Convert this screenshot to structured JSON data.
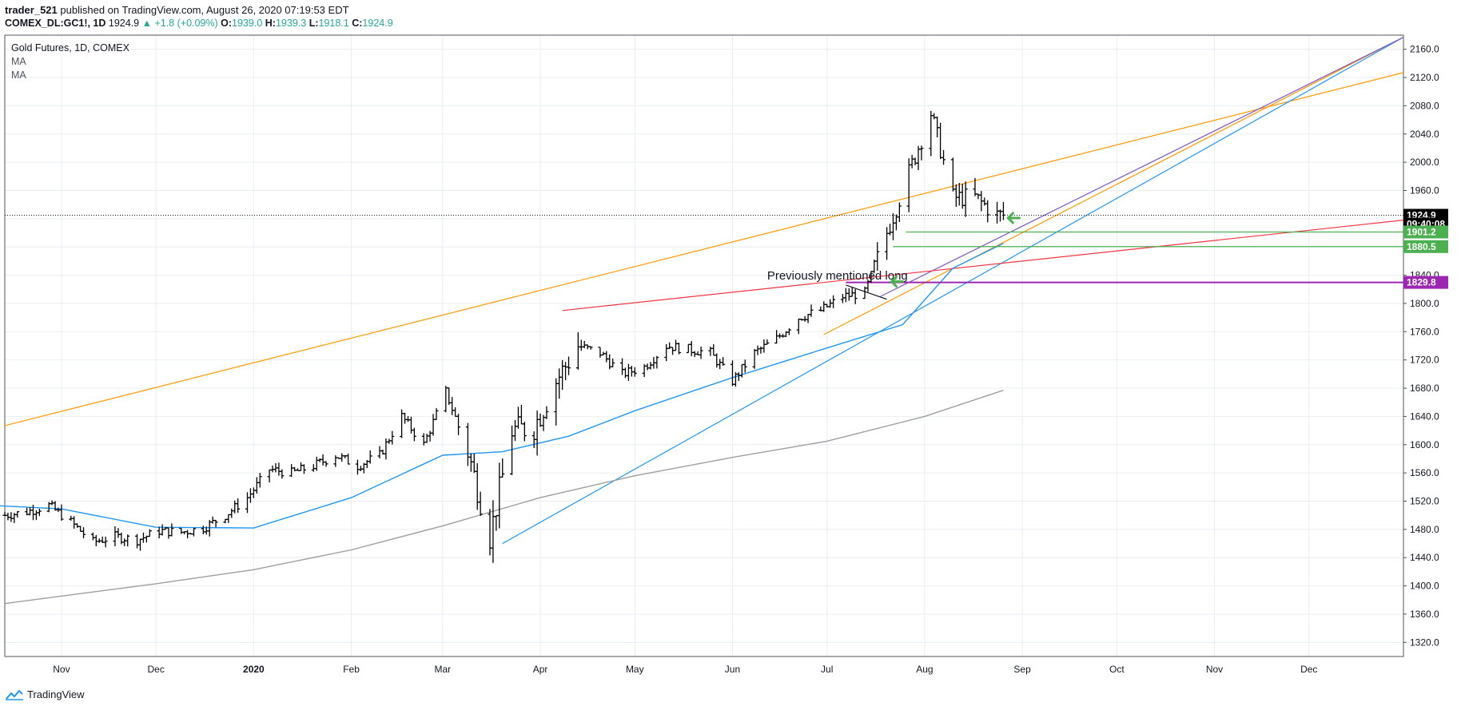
{
  "header": {
    "user": "trader_521",
    "published": "published on TradingView.com, August 26, 2020 07:19:53 EDT",
    "symbol": "COMEX_DL:GC1!, 1D",
    "price": "1924.9",
    "change": "▲ +1.8 (+0.09%)",
    "o_label": "O:",
    "o_val": "1939.0",
    "h_label": "H:",
    "h_val": "1939.3",
    "l_label": "L:",
    "l_val": "1918.1",
    "c_label": "C:",
    "c_val": "1924.9"
  },
  "legend": {
    "title": "Gold Futures, 1D, COMEX",
    "ma1": "MA",
    "ma2": "MA"
  },
  "footer": {
    "brand": "TradingView"
  },
  "colors": {
    "bars": "#000000",
    "ma_fast": "#2196f3",
    "ma_slow": "#9e9e9e",
    "orange": "#ff9800",
    "red": "#f23645",
    "purple": "#7e57c2",
    "green": "#4caf50",
    "magenta": "#9c27b0"
  },
  "chart_data": {
    "type": "ohlc",
    "ylim": [
      1300,
      2180
    ],
    "yticks": [
      "2160.0",
      "2120.0",
      "2080.0",
      "2040.0",
      "2000.0",
      "1960.0",
      "1920.0",
      "1880.0",
      "1840.0",
      "1800.0",
      "1760.0",
      "1720.0",
      "1680.0",
      "1640.0",
      "1600.0",
      "1560.0",
      "1520.0",
      "1480.0",
      "1440.0",
      "1400.0",
      "1360.0",
      "1320.0"
    ],
    "xticks": [
      "Nov",
      "Dec",
      "2020",
      "Feb",
      "Mar",
      "Apr",
      "May",
      "Jun",
      "Jul",
      "Aug",
      "Sep",
      "Oct",
      "Nov",
      "Dec"
    ],
    "date_range": [
      "2019-10-14",
      "2020-12-31"
    ],
    "xtick_dates": [
      "2019-11-01",
      "2019-12-01",
      "2020-01-01",
      "2020-02-01",
      "2020-03-01",
      "2020-04-01",
      "2020-05-01",
      "2020-06-01",
      "2020-07-01",
      "2020-08-01",
      "2020-09-01",
      "2020-10-01",
      "2020-11-01",
      "2020-12-01"
    ],
    "price_close": [
      [
        "2019-10-14",
        1500
      ],
      [
        "2019-10-21",
        1505
      ],
      [
        "2019-10-28",
        1514
      ],
      [
        "2019-11-04",
        1490
      ],
      [
        "2019-11-11",
        1462
      ],
      [
        "2019-11-18",
        1470
      ],
      [
        "2019-11-25",
        1465
      ],
      [
        "2019-12-02",
        1478
      ],
      [
        "2019-12-09",
        1476
      ],
      [
        "2019-12-16",
        1482
      ],
      [
        "2019-12-23",
        1500
      ],
      [
        "2019-12-30",
        1525
      ],
      [
        "2020-01-06",
        1565
      ],
      [
        "2020-01-13",
        1560
      ],
      [
        "2020-01-20",
        1570
      ],
      [
        "2020-01-27",
        1585
      ],
      [
        "2020-02-03",
        1570
      ],
      [
        "2020-02-10",
        1585
      ],
      [
        "2020-02-17",
        1640
      ],
      [
        "2020-02-24",
        1600
      ],
      [
        "2020-03-02",
        1675
      ],
      [
        "2020-03-09",
        1590
      ],
      [
        "2020-03-16",
        1470
      ],
      [
        "2020-03-23",
        1620
      ],
      [
        "2020-03-30",
        1625
      ],
      [
        "2020-04-06",
        1690
      ],
      [
        "2020-04-13",
        1740
      ],
      [
        "2020-04-20",
        1730
      ],
      [
        "2020-04-27",
        1700
      ],
      [
        "2020-05-04",
        1710
      ],
      [
        "2020-05-11",
        1740
      ],
      [
        "2020-05-18",
        1735
      ],
      [
        "2020-05-25",
        1730
      ],
      [
        "2020-06-01",
        1690
      ],
      [
        "2020-06-08",
        1730
      ],
      [
        "2020-06-15",
        1750
      ],
      [
        "2020-06-22",
        1780
      ],
      [
        "2020-06-29",
        1790
      ],
      [
        "2020-07-06",
        1810
      ],
      [
        "2020-07-13",
        1815
      ],
      [
        "2020-07-20",
        1900
      ],
      [
        "2020-07-27",
        1985
      ],
      [
        "2020-08-03",
        2070
      ],
      [
        "2020-08-10",
        1950
      ],
      [
        "2020-08-17",
        1950
      ],
      [
        "2020-08-24",
        1925
      ]
    ],
    "moving_averages": [
      {
        "name": "MA",
        "color": "#2196f3",
        "points": [
          [
            "2019-10-01",
            1516
          ],
          [
            "2019-11-01",
            1509
          ],
          [
            "2019-12-01",
            1483
          ],
          [
            "2020-01-01",
            1482
          ],
          [
            "2020-02-01",
            1525
          ],
          [
            "2020-03-01",
            1585
          ],
          [
            "2020-03-20",
            1590
          ],
          [
            "2020-04-10",
            1612
          ],
          [
            "2020-05-01",
            1648
          ],
          [
            "2020-06-01",
            1695
          ],
          [
            "2020-07-01",
            1737
          ],
          [
            "2020-07-25",
            1770
          ],
          [
            "2020-08-10",
            1850
          ],
          [
            "2020-08-26",
            1885
          ]
        ]
      },
      {
        "name": "MA",
        "color": "#9e9e9e",
        "points": [
          [
            "2019-10-14",
            1375
          ],
          [
            "2019-12-01",
            1403
          ],
          [
            "2020-01-01",
            1423
          ],
          [
            "2020-02-01",
            1451
          ],
          [
            "2020-03-01",
            1485
          ],
          [
            "2020-04-01",
            1525
          ],
          [
            "2020-05-01",
            1556
          ],
          [
            "2020-06-01",
            1582
          ],
          [
            "2020-07-01",
            1605
          ],
          [
            "2020-08-01",
            1640
          ],
          [
            "2020-08-26",
            1677
          ]
        ]
      }
    ],
    "trendlines": [
      {
        "color": "#ff9800",
        "from": [
          "2019-10-14",
          1627
        ],
        "to": [
          "2020-12-31",
          2127
        ]
      },
      {
        "color": "#ff9800",
        "from": [
          "2020-06-30",
          1756
        ],
        "to": [
          "2020-12-31",
          2177
        ]
      },
      {
        "color": "#2196f3",
        "from": [
          "2020-03-20",
          1460
        ],
        "to": [
          "2020-12-31",
          2177
        ]
      },
      {
        "color": "#7e57c2",
        "from": [
          "2020-07-18",
          1810
        ],
        "to": [
          "2020-12-31",
          2177
        ]
      },
      {
        "color": "#f23645",
        "from": [
          "2020-04-08",
          1790
        ],
        "to": [
          "2020-12-31",
          1918
        ]
      },
      {
        "color": "#131722",
        "from": [
          "2020-07-07",
          1826
        ],
        "to": [
          "2020-07-20",
          1806
        ]
      }
    ],
    "horizontal_levels": [
      {
        "color": "#4caf50",
        "value": 1901.2,
        "from": "2020-07-26"
      },
      {
        "color": "#4caf50",
        "value": 1880.5,
        "from": "2020-07-22"
      },
      {
        "color": "#9c27b0",
        "value": 1829.8,
        "from": "2020-07-07"
      }
    ],
    "price_labels": [
      {
        "text": "1924.9",
        "value": 1924.9,
        "bg": "#000000",
        "fg": "#ffffff"
      },
      {
        "text": "09:40:08",
        "value": 1912.4,
        "bg": "#000000",
        "fg": "#ffffff"
      },
      {
        "text": "1901.2",
        "value": 1901.2,
        "bg": "#4caf50",
        "fg": "#ffffff"
      },
      {
        "text": "1880.5",
        "value": 1880.5,
        "bg": "#4caf50",
        "fg": "#ffffff"
      },
      {
        "text": "1829.8",
        "value": 1829.8,
        "bg": "#9c27b0",
        "fg": "#ffffff"
      }
    ],
    "annotations": [
      {
        "text": "Previously mentioned long",
        "date": "2020-06-12",
        "value": 1834
      }
    ],
    "arrows": [
      {
        "date": "2020-07-21",
        "value": 1831,
        "color": "#4caf50"
      },
      {
        "date": "2020-08-27",
        "value": 1921,
        "color": "#4caf50"
      }
    ]
  }
}
